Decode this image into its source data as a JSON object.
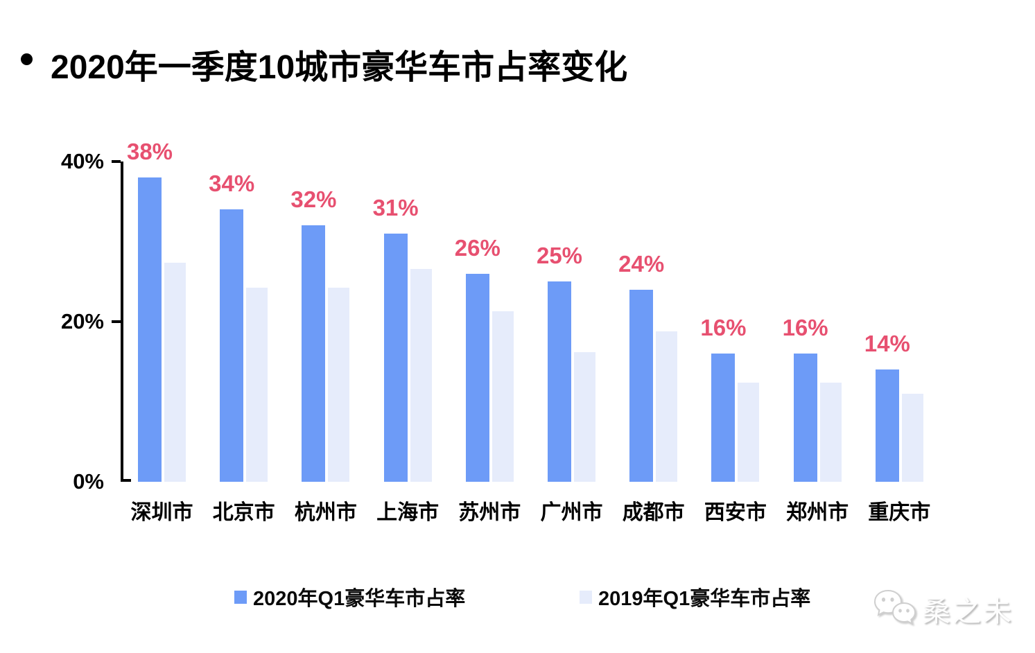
{
  "title": {
    "bullet": "•",
    "text": "2020年一季度10城市豪华车市占率变化"
  },
  "chart_data": {
    "type": "bar",
    "title": "2020年一季度10城市豪华车市占率变化",
    "categories": [
      "深圳市",
      "北京市",
      "杭州市",
      "上海市",
      "苏州市",
      "广州市",
      "成都市",
      "西安市",
      "郑州市",
      "重庆市"
    ],
    "series": [
      {
        "name": "2020年Q1豪华车市占率",
        "color": "#6D9BF7",
        "values": [
          38,
          34,
          32,
          31,
          26,
          25,
          24,
          16,
          16,
          14
        ],
        "data_labels": [
          "38%",
          "34%",
          "32%",
          "31%",
          "26%",
          "25%",
          "24%",
          "16%",
          "16%",
          "14%"
        ]
      },
      {
        "name": "2019年Q1豪华车市占率",
        "color": "#E6ECFB",
        "values": [
          27.4,
          24.2,
          24.2,
          26.6,
          21.3,
          16.2,
          18.8,
          12.4,
          12.4,
          11.0
        ],
        "data_labels": []
      }
    ],
    "xlabel": "",
    "ylabel": "",
    "ylim": [
      0,
      40
    ],
    "yticks": [
      {
        "label": "40%",
        "value": 40
      },
      {
        "label": "20%",
        "value": 20
      },
      {
        "label": "0%",
        "value": 0
      }
    ],
    "grid": false,
    "legend_position": "bottom",
    "data_label_color": "#E75070",
    "axis_color": "#000000"
  },
  "watermark": {
    "text": "桑之未",
    "icon": "wechat-icon"
  }
}
